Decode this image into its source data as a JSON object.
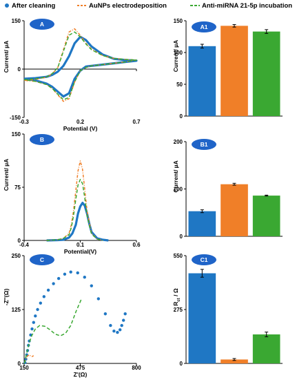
{
  "legend": [
    {
      "name": "After cleaning",
      "color": "#1f77c4",
      "style": "dotted"
    },
    {
      "name": "AuNPs electrodeposition",
      "color": "#f07f28",
      "style": "dash-dot"
    },
    {
      "name": "Anti-miRNA 21-5p incubation",
      "color": "#3aa832",
      "style": "dashed"
    }
  ],
  "chart_data": [
    {
      "id": "A",
      "panel_label": "A",
      "type": "line",
      "xlabel": "Potential (V)",
      "ylabel": "Current/ µA",
      "xlim": [
        -0.3,
        0.7
      ],
      "ylim": [
        -150,
        150
      ],
      "xticks": [
        "-0.3",
        "0.2",
        "0.7"
      ],
      "yticks": [
        "150",
        "0",
        "-150"
      ],
      "series": [
        {
          "name": "After cleaning",
          "x": [
            -0.3,
            -0.2,
            -0.1,
            -0.05,
            0,
            0.05,
            0.1,
            0.15,
            0.2,
            0.25,
            0.3,
            0.4,
            0.5,
            0.6,
            0.7,
            0.6,
            0.5,
            0.4,
            0.3,
            0.25,
            0.2,
            0.15,
            0.1,
            0.05,
            0,
            -0.05,
            -0.1,
            -0.2,
            -0.3
          ],
          "y": [
            -30,
            -28,
            -24,
            -18,
            -8,
            10,
            40,
            80,
            100,
            90,
            70,
            45,
            32,
            28,
            26,
            22,
            18,
            14,
            10,
            8,
            -5,
            -30,
            -75,
            -85,
            -70,
            -55,
            -45,
            -35,
            -30
          ]
        },
        {
          "name": "AuNPs electrodeposition",
          "x": [
            -0.3,
            -0.2,
            -0.1,
            -0.05,
            0,
            0.05,
            0.1,
            0.15,
            0.2,
            0.25,
            0.3,
            0.4,
            0.5,
            0.6,
            0.7,
            0.6,
            0.5,
            0.4,
            0.3,
            0.25,
            0.2,
            0.15,
            0.1,
            0.05,
            0,
            -0.05,
            -0.1,
            -0.2,
            -0.3
          ],
          "y": [
            -35,
            -32,
            -25,
            -15,
            5,
            60,
            115,
            125,
            105,
            80,
            62,
            42,
            33,
            30,
            28,
            22,
            18,
            14,
            10,
            5,
            -5,
            -40,
            -92,
            -100,
            -80,
            -60,
            -48,
            -38,
            -35
          ]
        },
        {
          "name": "Anti-miRNA 21-5p incubation",
          "x": [
            -0.3,
            -0.2,
            -0.1,
            -0.05,
            0,
            0.05,
            0.1,
            0.15,
            0.2,
            0.25,
            0.3,
            0.4,
            0.5,
            0.6,
            0.7,
            0.6,
            0.5,
            0.4,
            0.3,
            0.25,
            0.2,
            0.15,
            0.1,
            0.05,
            0,
            -0.05,
            -0.1,
            -0.2,
            -0.3
          ],
          "y": [
            -33,
            -30,
            -24,
            -14,
            5,
            55,
            105,
            115,
            100,
            78,
            60,
            42,
            33,
            30,
            28,
            22,
            18,
            14,
            10,
            5,
            -5,
            -40,
            -88,
            -95,
            -78,
            -60,
            -48,
            -38,
            -33
          ]
        }
      ]
    },
    {
      "id": "A1",
      "panel_label": "A1",
      "type": "bar",
      "ylabel": "Current/ µA",
      "ylim": [
        0,
        150
      ],
      "yticks": [
        "150",
        "100",
        "50",
        "0"
      ],
      "categories": [
        "After cleaning",
        "AuNPs electrodeposition",
        "Anti-miRNA 21-5p incubation"
      ],
      "values": [
        110,
        142,
        133
      ],
      "errors": [
        3,
        2,
        3
      ]
    },
    {
      "id": "B",
      "panel_label": "B",
      "type": "line",
      "xlabel": "Potential(V)",
      "ylabel": "Current/ µA",
      "xlim": [
        -0.4,
        0.6
      ],
      "ylim": [
        0,
        150
      ],
      "xticks": [
        "-0.4",
        "0.1",
        "0.6"
      ],
      "yticks": [
        "150",
        "75",
        "0"
      ],
      "series": [
        {
          "name": "After cleaning",
          "x": [
            -0.2,
            -0.1,
            -0.05,
            0,
            0.03,
            0.06,
            0.08,
            0.1,
            0.12,
            0.14,
            0.16,
            0.18,
            0.2,
            0.25,
            0.3,
            0.35
          ],
          "y": [
            0,
            0.5,
            1,
            4,
            10,
            22,
            38,
            48,
            53,
            49,
            38,
            24,
            12,
            3,
            1,
            0
          ]
        },
        {
          "name": "AuNPs electrodeposition",
          "x": [
            -0.2,
            -0.1,
            -0.05,
            0,
            0.02,
            0.04,
            0.06,
            0.08,
            0.1,
            0.12,
            0.14,
            0.16,
            0.2,
            0.25,
            0.3
          ],
          "y": [
            0,
            1,
            3,
            10,
            22,
            42,
            70,
            98,
            112,
            100,
            72,
            42,
            10,
            2,
            0
          ]
        },
        {
          "name": "Anti-miRNA 21-5p incubation",
          "x": [
            -0.2,
            -0.1,
            -0.05,
            0,
            0.02,
            0.04,
            0.06,
            0.08,
            0.1,
            0.12,
            0.14,
            0.16,
            0.2,
            0.25,
            0.3
          ],
          "y": [
            0,
            1,
            3,
            8,
            18,
            35,
            58,
            78,
            86,
            80,
            60,
            35,
            9,
            2,
            0
          ]
        }
      ]
    },
    {
      "id": "B1",
      "panel_label": "B1",
      "type": "bar",
      "ylabel": "Current/ µA",
      "ylim": [
        0,
        200
      ],
      "yticks": [
        "200",
        "100",
        "0"
      ],
      "categories": [
        "After cleaning",
        "AuNPs electrodeposition",
        "Anti-miRNA 21-5p incubation"
      ],
      "values": [
        53,
        110,
        86
      ],
      "errors": [
        3,
        2,
        1
      ]
    },
    {
      "id": "C",
      "panel_label": "C",
      "type": "scatter",
      "xlabel": "Z'(Ω)",
      "ylabel": "-Z''(Ω)",
      "xlim": [
        150,
        800
      ],
      "ylim": [
        0,
        250
      ],
      "xticks": [
        "150",
        "475",
        "800"
      ],
      "yticks": [
        "250",
        "125",
        "0"
      ],
      "series": [
        {
          "name": "After cleaning",
          "x": [
            155,
            160,
            165,
            170,
            175,
            180,
            188,
            196,
            205,
            215,
            228,
            245,
            265,
            290,
            320,
            350,
            385,
            420,
            460,
            500,
            540,
            580,
            620,
            650,
            670,
            690,
            705,
            715,
            725,
            735
          ],
          "y": [
            2,
            10,
            20,
            30,
            42,
            52,
            66,
            80,
            95,
            110,
            125,
            140,
            155,
            170,
            185,
            197,
            207,
            212,
            210,
            200,
            180,
            150,
            115,
            88,
            75,
            72,
            78,
            88,
            100,
            115
          ]
        },
        {
          "name": "AuNPs electrodeposition",
          "x": [
            152,
            158,
            165,
            172,
            180,
            188,
            196,
            205
          ],
          "y": [
            2,
            8,
            14,
            18,
            20,
            17,
            16,
            18
          ]
        },
        {
          "name": "Anti-miRNA 21-5p incubation",
          "x": [
            152,
            160,
            170,
            180,
            195,
            215,
            240,
            270,
            300,
            330,
            360,
            390,
            420,
            450,
            480
          ],
          "y": [
            0,
            15,
            32,
            48,
            65,
            80,
            88,
            86,
            78,
            68,
            64,
            70,
            88,
            120,
            148
          ]
        }
      ]
    },
    {
      "id": "C1",
      "panel_label": "C1",
      "type": "bar",
      "ylabel": "R",
      "ylabel_subscript": "ct",
      "ylabel_unit": "/ Ω",
      "ylim": [
        0,
        550
      ],
      "yticks": [
        "550",
        "275",
        "0"
      ],
      "categories": [
        "After cleaning",
        "AuNPs electrodeposition",
        "Anti-miRNA 21-5p incubation"
      ],
      "values": [
        460,
        20,
        148
      ],
      "errors": [
        20,
        5,
        12
      ]
    }
  ]
}
